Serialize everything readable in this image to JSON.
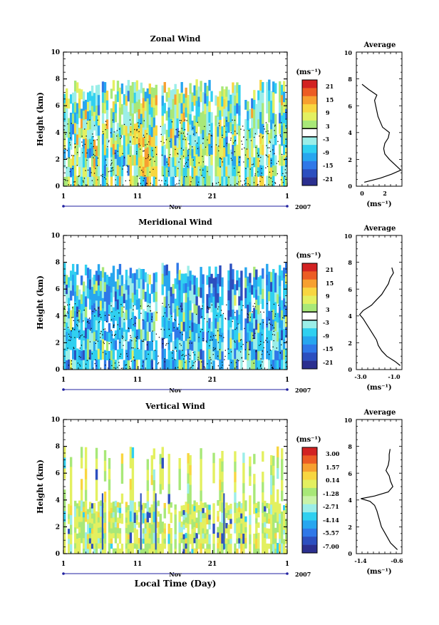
{
  "figure": {
    "xlabel": "Local Time (Day)",
    "month_label": "Nov",
    "year_label": "2007",
    "ylabel": "Height (km)",
    "avg_title": "Average",
    "unit_label": "(ms⁻¹)"
  },
  "chart_data": [
    {
      "type": "heatmap",
      "title": "Zonal Wind",
      "xlabel": "Local Time (Day)",
      "ylabel": "Height (km)",
      "x_tick_labels": [
        "1",
        "11",
        "21",
        "1"
      ],
      "y_ticks": [
        0,
        2,
        4,
        6,
        8,
        10
      ],
      "ylim": [
        0,
        10
      ],
      "colorbar": {
        "label": "(ms⁻¹)",
        "ticks": [
          "21",
          "15",
          "9",
          "3",
          "-3",
          "-9",
          "-15",
          "-21"
        ],
        "range": [
          -24,
          24
        ]
      },
      "average_profile": {
        "title": "Average",
        "xlabel": "(ms⁻¹)",
        "x_ticks": [
          "0",
          "2"
        ],
        "xlim": [
          -0.5,
          3.5
        ],
        "height_km": [
          0.3,
          0.6,
          0.9,
          1.2,
          1.6,
          2.0,
          2.4,
          2.8,
          3.2,
          3.6,
          4.0,
          4.4,
          4.8,
          5.2,
          5.6,
          6.0,
          6.4,
          6.8,
          7.2,
          7.6
        ],
        "wind": [
          0.2,
          1.6,
          2.6,
          3.4,
          2.9,
          2.4,
          2.0,
          1.9,
          2.0,
          2.3,
          2.4,
          1.8,
          1.6,
          1.4,
          1.3,
          1.2,
          1.1,
          1.3,
          0.6,
          0.0
        ]
      }
    },
    {
      "type": "heatmap",
      "title": "Meridional Wind",
      "xlabel": "Local Time (Day)",
      "ylabel": "Height (km)",
      "x_tick_labels": [
        "1",
        "11",
        "21",
        "1"
      ],
      "y_ticks": [
        0,
        2,
        4,
        6,
        8,
        10
      ],
      "ylim": [
        0,
        10
      ],
      "colorbar": {
        "label": "(ms⁻¹)",
        "ticks": [
          "21",
          "15",
          "9",
          "3",
          "-3",
          "-9",
          "-15",
          "-21"
        ],
        "range": [
          -24,
          24
        ]
      },
      "average_profile": {
        "title": "Average",
        "xlabel": "(ms⁻¹)",
        "x_ticks": [
          "-3.0",
          "-1.0"
        ],
        "xlim": [
          -3.4,
          -0.7
        ],
        "height_km": [
          0.3,
          0.6,
          1.0,
          1.4,
          1.8,
          2.2,
          2.6,
          3.0,
          3.4,
          3.8,
          4.1,
          4.4,
          4.8,
          5.2,
          5.6,
          6.0,
          6.4,
          6.8,
          7.2,
          7.6
        ],
        "wind": [
          -0.8,
          -1.1,
          -1.6,
          -1.9,
          -2.1,
          -2.2,
          -2.4,
          -2.6,
          -2.8,
          -3.0,
          -3.2,
          -3.0,
          -2.5,
          -2.2,
          -1.9,
          -1.7,
          -1.5,
          -1.4,
          -1.2,
          -1.3
        ]
      }
    },
    {
      "type": "heatmap",
      "title": "Vertical Wind",
      "xlabel": "Local Time (Day)",
      "ylabel": "Height (km)",
      "x_tick_labels": [
        "1",
        "11",
        "21",
        "1"
      ],
      "y_ticks": [
        0,
        2,
        4,
        6,
        8,
        10
      ],
      "ylim": [
        0,
        10
      ],
      "colorbar": {
        "label": "(ms⁻¹)",
        "ticks": [
          "3.00",
          "1.57",
          "0.14",
          "-1.28",
          "-2.71",
          "-4.14",
          "-5.57",
          "-7.00"
        ],
        "range": [
          -7.0,
          3.0
        ]
      },
      "average_profile": {
        "title": "Average",
        "xlabel": "(ms⁻¹)",
        "x_ticks": [
          "-1.4",
          "-0.6"
        ],
        "xlim": [
          -1.5,
          -0.5
        ],
        "height_km": [
          0.3,
          0.8,
          1.4,
          2.0,
          2.6,
          3.2,
          3.6,
          3.9,
          4.1,
          4.3,
          4.6,
          5.0,
          5.4,
          5.8,
          6.2,
          6.6,
          7.0,
          7.4,
          7.8
        ],
        "wind": [
          -0.6,
          -0.75,
          -0.85,
          -0.95,
          -1.0,
          -1.05,
          -1.1,
          -1.2,
          -1.4,
          -1.1,
          -0.8,
          -0.7,
          -0.75,
          -0.78,
          -0.85,
          -0.8,
          -0.78,
          -0.78,
          -0.76
        ]
      }
    }
  ]
}
